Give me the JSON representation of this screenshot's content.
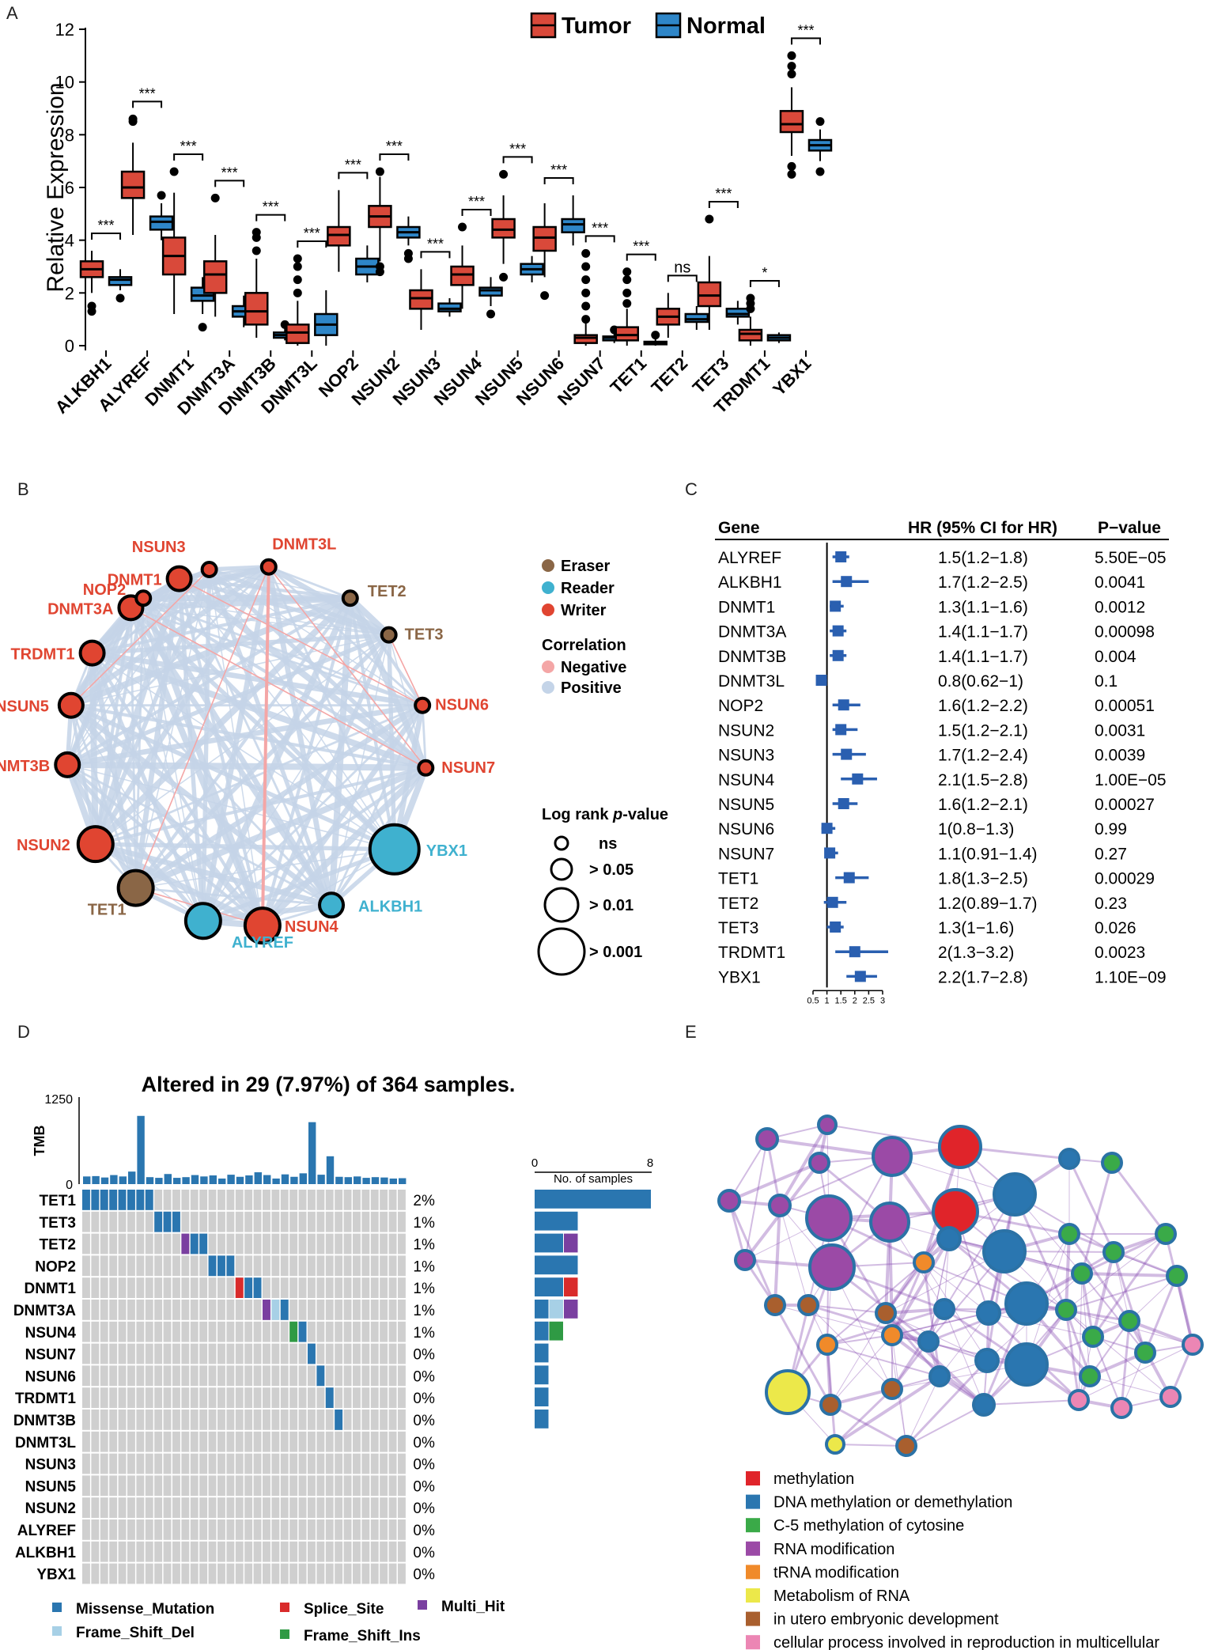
{
  "panel_labels": {
    "A": "A",
    "B": "B",
    "C": "C",
    "D": "D",
    "E": "E"
  },
  "colors": {
    "tumor": "#d9493a",
    "normal": "#2e86c8",
    "eraser": "#8a6646",
    "reader": "#3fb1cf",
    "writer": "#e04531",
    "negative": "#f4a6a6",
    "positive": "#c4d4e8",
    "missense": "#2a76b0",
    "splice": "#d92b2b",
    "multi": "#7a3fa0",
    "fsdel": "#a7d0e6",
    "fsins": "#2f9a44",
    "grey": "#cfcfcf"
  },
  "chart_data": [
    {
      "type": "box",
      "panel": "A",
      "ylabel": "Relative Expression",
      "ylim": [
        0,
        12
      ],
      "yticks": [
        "0",
        "2",
        "4",
        "6",
        "8",
        "10",
        "12"
      ],
      "legend": [
        "Tumor",
        "Normal"
      ],
      "categories": [
        "ALKBH1",
        "ALYREF",
        "DNMT1",
        "DNMT3A",
        "DNMT3B",
        "DNMT3L",
        "NOP2",
        "NSUN2",
        "NSUN3",
        "NSUN4",
        "NSUN5",
        "NSUN6",
        "NSUN7",
        "TET1",
        "TET2",
        "TET3",
        "TRDMT1",
        "YBX1"
      ],
      "significance": [
        "***",
        "***",
        "***",
        "***",
        "***",
        "***",
        "***",
        "***",
        "***",
        "***",
        "***",
        "***",
        "***",
        "***",
        "ns",
        "***",
        "*",
        "***"
      ],
      "tumor": [
        [
          2.0,
          2.6,
          2.9,
          3.2,
          3.6
        ],
        [
          4.2,
          5.6,
          6.0,
          6.6,
          7.7
        ],
        [
          1.2,
          2.7,
          3.4,
          4.1,
          5.8
        ],
        [
          1.1,
          2.0,
          2.7,
          3.2,
          4.2
        ],
        [
          0.3,
          0.8,
          1.3,
          2.0,
          3.3
        ],
        [
          0.0,
          0.1,
          0.5,
          0.8,
          1.7
        ],
        [
          2.8,
          3.8,
          4.2,
          4.5,
          5.9
        ],
        [
          3.2,
          4.5,
          4.9,
          5.3,
          6.4
        ],
        [
          0.6,
          1.4,
          1.8,
          2.1,
          2.9
        ],
        [
          1.4,
          2.3,
          2.7,
          3.0,
          3.8
        ],
        [
          3.1,
          4.1,
          4.4,
          4.8,
          5.7
        ],
        [
          2.6,
          3.6,
          4.1,
          4.5,
          5.4
        ],
        [
          0.0,
          0.1,
          0.3,
          0.4,
          0.9
        ],
        [
          0.0,
          0.2,
          0.4,
          0.7,
          1.4
        ],
        [
          0.3,
          0.8,
          1.1,
          1.4,
          2.0
        ],
        [
          0.6,
          1.5,
          1.9,
          2.4,
          3.4
        ],
        [
          0.0,
          0.2,
          0.45,
          0.6,
          1.1
        ],
        [
          7.2,
          8.1,
          8.4,
          8.9,
          9.8
        ]
      ],
      "normal": [
        [
          2.1,
          2.3,
          2.5,
          2.6,
          2.9
        ],
        [
          4.0,
          4.4,
          4.7,
          4.9,
          5.4
        ],
        [
          1.2,
          1.7,
          1.9,
          2.2,
          2.6
        ],
        [
          0.7,
          1.1,
          1.3,
          1.5,
          1.9
        ],
        [
          0.2,
          0.3,
          0.4,
          0.5,
          0.7
        ],
        [
          0.0,
          0.4,
          0.8,
          1.2,
          2.1
        ],
        [
          2.4,
          2.7,
          3.0,
          3.3,
          3.8
        ],
        [
          3.8,
          4.1,
          4.3,
          4.5,
          4.9
        ],
        [
          1.1,
          1.3,
          1.4,
          1.6,
          1.8
        ],
        [
          1.5,
          1.9,
          2.1,
          2.2,
          2.6
        ],
        [
          2.4,
          2.7,
          2.9,
          3.1,
          3.4
        ],
        [
          3.8,
          4.3,
          4.6,
          4.8,
          5.7
        ],
        [
          0.1,
          0.2,
          0.3,
          0.35,
          0.5
        ],
        [
          0.0,
          0.05,
          0.1,
          0.15,
          0.3
        ],
        [
          0.6,
          0.9,
          1.0,
          1.2,
          1.5
        ],
        [
          0.8,
          1.1,
          1.2,
          1.4,
          1.7
        ],
        [
          0.1,
          0.2,
          0.3,
          0.4,
          0.5
        ],
        [
          7.0,
          7.4,
          7.6,
          7.8,
          8.2
        ]
      ],
      "tumor_outliers": [
        [
          1.3,
          1.5
        ],
        [
          8.5,
          8.6
        ],
        [
          6.6
        ],
        [
          5.6
        ],
        [
          3.6,
          4.1,
          4.3
        ],
        [
          2.0,
          2.5,
          3.0,
          3.3
        ],
        [],
        [
          2.8,
          3.0,
          6.6
        ],
        [],
        [
          4.5
        ],
        [
          2.6,
          6.5
        ],
        [
          1.9
        ],
        [
          1.0,
          1.5,
          2.0,
          2.5,
          3.0,
          3.5
        ],
        [
          1.6,
          2.0,
          2.5,
          2.8
        ],
        [],
        [
          4.8
        ],
        [
          1.4,
          1.6,
          1.8
        ],
        [
          6.5,
          6.8,
          10.3,
          10.6,
          11.0
        ]
      ],
      "normal_outliers": [
        [
          1.8
        ],
        [
          5.7
        ],
        [
          0.7
        ],
        [],
        [
          0.8
        ],
        [],
        [],
        [
          3.3,
          3.5
        ],
        [],
        [
          1.2
        ],
        [],
        [],
        [
          0.6
        ],
        [
          0.4
        ],
        [],
        [],
        [],
        [
          6.6,
          8.5
        ]
      ]
    },
    {
      "type": "network",
      "panel": "B",
      "legend_type": [
        "Eraser",
        "Reader",
        "Writer"
      ],
      "legend_corr_title": "Correlation",
      "legend_corr": [
        "Negative",
        "Positive"
      ],
      "legend_size_title": "Log rank ",
      "legend_size_title_italic": "p",
      "legend_size_title_end": "-value",
      "legend_size": [
        "ns",
        "> 0.05",
        "> 0.01",
        "> 0.001"
      ],
      "nodes": [
        {
          "name": "NSUN3",
          "type": "Writer",
          "size": 1
        },
        {
          "name": "DNMT3L",
          "type": "Writer",
          "size": 1
        },
        {
          "name": "TET2",
          "type": "Eraser",
          "size": 1
        },
        {
          "name": "TET3",
          "type": "Eraser",
          "size": 1
        },
        {
          "name": "NSUN6",
          "type": "Writer",
          "size": 1
        },
        {
          "name": "NSUN7",
          "type": "Writer",
          "size": 1
        },
        {
          "name": "YBX1",
          "type": "Reader",
          "size": 4
        },
        {
          "name": "ALKBH1",
          "type": "Reader",
          "size": 2
        },
        {
          "name": "NSUN4",
          "type": "Writer",
          "size": 3
        },
        {
          "name": "ALYREF",
          "type": "Reader",
          "size": 3
        },
        {
          "name": "TET1",
          "type": "Eraser",
          "size": 3
        },
        {
          "name": "NSUN2",
          "type": "Writer",
          "size": 3
        },
        {
          "name": "DNMT3B",
          "type": "Writer",
          "size": 2
        },
        {
          "name": "NSUN5",
          "type": "Writer",
          "size": 2
        },
        {
          "name": "TRDMT1",
          "type": "Writer",
          "size": 2
        },
        {
          "name": "DNMT3A",
          "type": "Writer",
          "size": 2
        },
        {
          "name": "DNMT1",
          "type": "Writer",
          "size": 2
        },
        {
          "name": "NOP2",
          "type": "Writer",
          "size": 1
        }
      ]
    },
    {
      "type": "forest",
      "panel": "C",
      "headers": [
        "Gene",
        "HR (95% CI for HR)",
        "P−value"
      ],
      "rows": [
        {
          "gene": "ALYREF",
          "hr_text": "1.5(1.2−1.8)",
          "p": "5.50E−05",
          "hr": 1.5,
          "lo": 1.2,
          "hi": 1.8
        },
        {
          "gene": "ALKBH1",
          "hr_text": "1.7(1.2−2.5)",
          "p": "0.0041",
          "hr": 1.7,
          "lo": 1.2,
          "hi": 2.5
        },
        {
          "gene": "DNMT1",
          "hr_text": "1.3(1.1−1.6)",
          "p": "0.0012",
          "hr": 1.3,
          "lo": 1.1,
          "hi": 1.6
        },
        {
          "gene": "DNMT3A",
          "hr_text": "1.4(1.1−1.7)",
          "p": "0.00098",
          "hr": 1.4,
          "lo": 1.1,
          "hi": 1.7
        },
        {
          "gene": "DNMT3B",
          "hr_text": "1.4(1.1−1.7)",
          "p": "0.004",
          "hr": 1.4,
          "lo": 1.1,
          "hi": 1.7
        },
        {
          "gene": "DNMT3L",
          "hr_text": "0.8(0.62−1)",
          "p": "0.1",
          "hr": 0.8,
          "lo": 0.62,
          "hi": 1.0
        },
        {
          "gene": "NOP2",
          "hr_text": "1.6(1.2−2.2)",
          "p": "0.00051",
          "hr": 1.6,
          "lo": 1.2,
          "hi": 2.2
        },
        {
          "gene": "NSUN2",
          "hr_text": "1.5(1.2−2.1)",
          "p": "0.0031",
          "hr": 1.5,
          "lo": 1.2,
          "hi": 2.1
        },
        {
          "gene": "NSUN3",
          "hr_text": "1.7(1.2−2.4)",
          "p": "0.0039",
          "hr": 1.7,
          "lo": 1.2,
          "hi": 2.4
        },
        {
          "gene": "NSUN4",
          "hr_text": "2.1(1.5−2.8)",
          "p": "1.00E−05",
          "hr": 2.1,
          "lo": 1.5,
          "hi": 2.8
        },
        {
          "gene": "NSUN5",
          "hr_text": "1.6(1.2−2.1)",
          "p": "0.00027",
          "hr": 1.6,
          "lo": 1.2,
          "hi": 2.1
        },
        {
          "gene": "NSUN6",
          "hr_text": "1(0.8−1.3)",
          "p": "0.99",
          "hr": 1.0,
          "lo": 0.8,
          "hi": 1.3
        },
        {
          "gene": "NSUN7",
          "hr_text": "1.1(0.91−1.4)",
          "p": "0.27",
          "hr": 1.1,
          "lo": 0.91,
          "hi": 1.4
        },
        {
          "gene": "TET1",
          "hr_text": "1.8(1.3−2.5)",
          "p": "0.00029",
          "hr": 1.8,
          "lo": 1.3,
          "hi": 2.5
        },
        {
          "gene": "TET2",
          "hr_text": "1.2(0.89−1.7)",
          "p": "0.23",
          "hr": 1.2,
          "lo": 0.89,
          "hi": 1.7
        },
        {
          "gene": "TET3",
          "hr_text": "1.3(1−1.6)",
          "p": "0.026",
          "hr": 1.3,
          "lo": 1.0,
          "hi": 1.6
        },
        {
          "gene": "TRDMT1",
          "hr_text": "2(1.3−3.2)",
          "p": "0.0023",
          "hr": 2.0,
          "lo": 1.3,
          "hi": 3.2
        },
        {
          "gene": "YBX1",
          "hr_text": "2.2(1.7−2.8)",
          "p": "1.10E−09",
          "hr": 2.2,
          "lo": 1.7,
          "hi": 2.8
        }
      ],
      "xticks": [
        0.5,
        1,
        1.5,
        2,
        2.5,
        3
      ],
      "xtick_labels": [
        "0.5",
        "1",
        "1.5",
        "2",
        "2.5",
        "3"
      ],
      "xlim": [
        0.5,
        3
      ]
    },
    {
      "type": "oncoplot",
      "panel": "D",
      "title": "Altered in 29 (7.97%) of 364 samples.",
      "tmb_label": "TMB",
      "tmb_ticks": [
        "0",
        "1250"
      ],
      "tmb_max": 1250,
      "tmb": [
        110,
        115,
        95,
        130,
        110,
        180,
        980,
        100,
        90,
        145,
        90,
        100,
        130,
        110,
        125,
        80,
        135,
        105,
        125,
        170,
        130,
        80,
        140,
        105,
        155,
        890,
        135,
        400,
        105,
        100,
        110,
        90,
        100,
        95,
        80,
        85
      ],
      "samples_axis": [
        "0",
        "8"
      ],
      "samples_label": "No. of samples",
      "samples_max": 8,
      "genes": [
        "TET1",
        "TET3",
        "TET2",
        "NOP2",
        "DNMT1",
        "DNMT3A",
        "NSUN4",
        "NSUN7",
        "NSUN6",
        "TRDMT1",
        "DNMT3B",
        "DNMT3L",
        "NSUN3",
        "NSUN5",
        "NSUN2",
        "ALYREF",
        "ALKBH1",
        "YBX1"
      ],
      "percents": [
        "2%",
        "1%",
        "1%",
        "1%",
        "1%",
        "1%",
        "1%",
        "0%",
        "0%",
        "0%",
        "0%",
        "0%",
        "0%",
        "0%",
        "0%",
        "0%",
        "0%",
        "0%"
      ],
      "gene_counts": [
        {
          "Missense_Mutation": 8
        },
        {
          "Missense_Mutation": 3
        },
        {
          "Missense_Mutation": 2,
          "Multi_Hit": 1
        },
        {
          "Missense_Mutation": 3
        },
        {
          "Missense_Mutation": 2,
          "Splice_Site": 1
        },
        {
          "Missense_Mutation": 1,
          "Frame_Shift_Del": 1,
          "Multi_Hit": 1
        },
        {
          "Missense_Mutation": 1,
          "Frame_Shift_Ins": 1
        },
        {
          "Missense_Mutation": 1
        },
        {
          "Missense_Mutation": 1
        },
        {
          "Missense_Mutation": 1
        },
        {
          "Missense_Mutation": 1
        },
        {},
        {},
        {},
        {},
        {},
        {},
        {}
      ],
      "mutations": [
        [
          0,
          0,
          "Missense_Mutation"
        ],
        [
          0,
          1,
          "Missense_Mutation"
        ],
        [
          0,
          2,
          "Missense_Mutation"
        ],
        [
          0,
          3,
          "Missense_Mutation"
        ],
        [
          0,
          4,
          "Missense_Mutation"
        ],
        [
          0,
          5,
          "Missense_Mutation"
        ],
        [
          0,
          6,
          "Missense_Mutation"
        ],
        [
          0,
          7,
          "Missense_Mutation"
        ],
        [
          1,
          8,
          "Missense_Mutation"
        ],
        [
          1,
          9,
          "Missense_Mutation"
        ],
        [
          1,
          10,
          "Missense_Mutation"
        ],
        [
          2,
          11,
          "Multi_Hit"
        ],
        [
          2,
          12,
          "Missense_Mutation"
        ],
        [
          2,
          13,
          "Missense_Mutation"
        ],
        [
          3,
          14,
          "Missense_Mutation"
        ],
        [
          3,
          15,
          "Missense_Mutation"
        ],
        [
          3,
          16,
          "Missense_Mutation"
        ],
        [
          4,
          17,
          "Splice_Site"
        ],
        [
          4,
          18,
          "Missense_Mutation"
        ],
        [
          4,
          19,
          "Missense_Mutation"
        ],
        [
          5,
          20,
          "Multi_Hit"
        ],
        [
          5,
          21,
          "Frame_Shift_Del"
        ],
        [
          5,
          22,
          "Missense_Mutation"
        ],
        [
          6,
          23,
          "Frame_Shift_Ins"
        ],
        [
          6,
          24,
          "Missense_Mutation"
        ],
        [
          7,
          25,
          "Missense_Mutation"
        ],
        [
          8,
          26,
          "Missense_Mutation"
        ],
        [
          9,
          27,
          "Missense_Mutation"
        ],
        [
          10,
          28,
          "Missense_Mutation"
        ]
      ],
      "legend": [
        "Missense_Mutation",
        "Splice_Site",
        "Multi_Hit",
        "Frame_Shift_Del",
        "Frame_Shift_Ins"
      ]
    },
    {
      "type": "enrichment-network",
      "panel": "E",
      "legend": [
        {
          "label": "methylation",
          "color": "#e0242a"
        },
        {
          "label": "DNA methylation or demethylation",
          "color": "#2a76b0"
        },
        {
          "label": "C-5 methylation of cytosine",
          "color": "#3aaa48"
        },
        {
          "label": "RNA modification",
          "color": "#9b4aa6"
        },
        {
          "label": "tRNA modification",
          "color": "#f08a2a"
        },
        {
          "label": "Metabolism of RNA",
          "color": "#ece84a"
        },
        {
          "label": "in utero embryonic development",
          "color": "#a95f2e"
        },
        {
          "label": "cellular process involved in reproduction in multicellular",
          "color": "#ec86b4"
        }
      ]
    }
  ]
}
